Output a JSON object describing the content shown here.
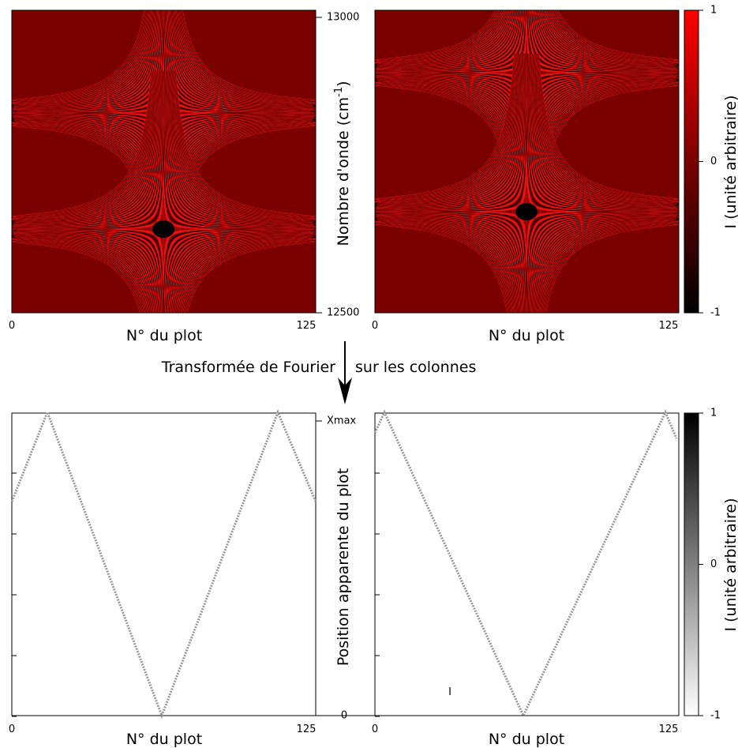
{
  "top": {
    "x_label": "N° du plot",
    "x_ticks": [
      "0",
      "125"
    ],
    "y_label": [
      "Nombre d'onde (cm",
      "-1",
      ")"
    ],
    "y_ticks": [
      "13000",
      "12500"
    ],
    "colorbar": {
      "label": "I (unité arbitraire)",
      "ticks": [
        -1,
        0,
        1
      ]
    }
  },
  "transform": {
    "left": "Transformée de Fourier",
    "right": "sur les colonnes"
  },
  "bottom": {
    "x_label": "N° du plot",
    "x_ticks": [
      "0",
      "125"
    ],
    "y_label": "Position apparente du plot",
    "y_ticks": [
      "Xmax",
      "0"
    ],
    "note": "I",
    "colorbar": {
      "label": "I (unité arbitraire)",
      "ticks": [
        -1,
        0,
        1
      ]
    }
  }
}
